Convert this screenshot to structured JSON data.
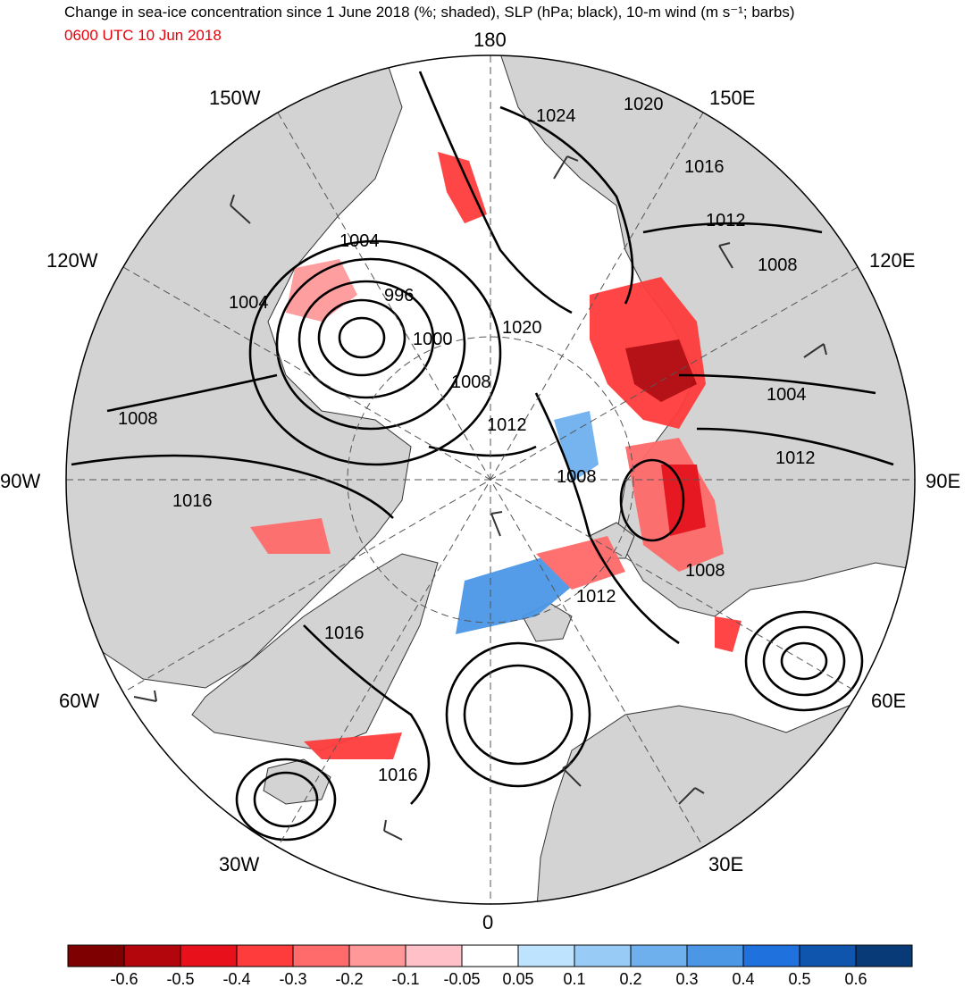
{
  "header": {
    "title": "Change in sea-ice concentration since 1 June 2018 (%; shaded), SLP (hPa; black), 10-m wind (m s⁻¹; barbs)",
    "subtitle": "0600 UTC 10 Jun 2018"
  },
  "map": {
    "projection": "north-polar-stereographic",
    "longitude_labels": {
      "lon_180": "180",
      "lon_150e": "150E",
      "lon_120e": "120E",
      "lon_90e": "90E",
      "lon_60e": "60E",
      "lon_30e": "30E",
      "lon_0": "0",
      "lon_30w": "30W",
      "lon_60w": "60W",
      "lon_90w": "90W",
      "lon_120w": "120W",
      "lon_150w": "150W"
    },
    "slp_contour_labels": [
      "1024",
      "1020",
      "1016",
      "1012",
      "1008",
      "1004",
      "996",
      "1000",
      "1004",
      "1020",
      "1008",
      "1012",
      "1008",
      "1016",
      "1008",
      "1004",
      "1012",
      "1008",
      "1012",
      "1016",
      "1016"
    ],
    "land_color": "#d3d3d3"
  },
  "colorbar": {
    "colors": [
      "#7f0000",
      "#b2060c",
      "#e8101a",
      "#ff3c3c",
      "#ff6a6a",
      "#ff9999",
      "#ffc0c7",
      "#ffffff",
      "#bde3ff",
      "#99cbf7",
      "#6eb0ee",
      "#4b97e6",
      "#1f71de",
      "#0f55ad",
      "#083a78"
    ],
    "ticks": [
      "-0.6",
      "-0.5",
      "-0.4",
      "-0.3",
      "-0.2",
      "-0.1",
      "-0.05",
      "0.05",
      "0.1",
      "0.2",
      "0.3",
      "0.4",
      "0.5",
      "0.6"
    ]
  }
}
